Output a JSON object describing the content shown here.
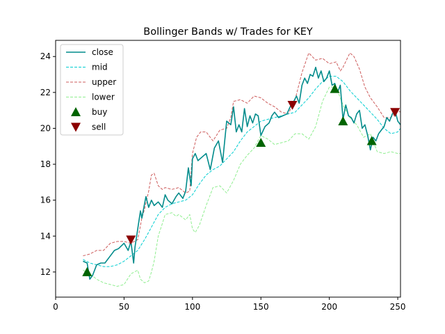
{
  "chart_data": {
    "type": "line",
    "title": "Bollinger Bands w/ Trades for KEY",
    "xlabel": "",
    "ylabel": "",
    "xlim": [
      0,
      252
    ],
    "ylim": [
      10.6,
      24.9
    ],
    "xticks": [
      0,
      50,
      100,
      150,
      200,
      250
    ],
    "yticks": [
      12,
      14,
      16,
      18,
      20,
      22,
      24
    ],
    "grid": false,
    "legend_position": "top-left",
    "colors": {
      "close": "#008b8b",
      "mid": "#00ced1",
      "upper": "#cd5c5c",
      "lower": "#90ee90",
      "buy": "#006400",
      "sell": "#8b0000"
    },
    "series": [
      {
        "name": "close",
        "style": "solid",
        "x": [
          20,
          23,
          25,
          27,
          30,
          33,
          36,
          40,
          43,
          46,
          50,
          53,
          55,
          57,
          58,
          60,
          62,
          63,
          65,
          66,
          68,
          70,
          72,
          75,
          78,
          80,
          82,
          85,
          88,
          90,
          93,
          95,
          97,
          99,
          100,
          102,
          104,
          107,
          110,
          113,
          116,
          119,
          122,
          125,
          128,
          130,
          132,
          134,
          136,
          138,
          140,
          142,
          144,
          146,
          148,
          150,
          153,
          156,
          158,
          160,
          163,
          166,
          169,
          172,
          174,
          176,
          178,
          180,
          182,
          184,
          186,
          188,
          190,
          192,
          194,
          196,
          198,
          200,
          202,
          204,
          206,
          208,
          210,
          212,
          214,
          216,
          218,
          220,
          222,
          224,
          226,
          228,
          230,
          232,
          234,
          236,
          238,
          240,
          242,
          244,
          246,
          248,
          250,
          252
        ],
        "y": [
          12.6,
          12.5,
          11.6,
          11.8,
          12.4,
          12.5,
          12.5,
          12.9,
          13.2,
          13.3,
          13.6,
          13.2,
          13.7,
          12.5,
          13.4,
          14.4,
          15.4,
          15.0,
          15.8,
          16.2,
          15.6,
          16.0,
          15.7,
          15.9,
          15.6,
          16.3,
          16.0,
          15.8,
          16.2,
          16.4,
          16.1,
          16.5,
          17.8,
          16.8,
          18.3,
          18.6,
          18.2,
          18.4,
          18.6,
          17.7,
          18.9,
          19.3,
          18.1,
          20.4,
          20.2,
          21.2,
          19.8,
          20.2,
          19.8,
          21.1,
          20.1,
          20.7,
          20.3,
          20.8,
          20.7,
          19.6,
          20.1,
          20.3,
          20.7,
          20.9,
          20.6,
          20.7,
          20.8,
          21.3,
          21.5,
          21.8,
          21.4,
          22.4,
          22.8,
          22.5,
          23.0,
          22.9,
          23.4,
          22.8,
          23.2,
          22.6,
          22.8,
          23.2,
          22.4,
          22.5,
          22.0,
          22.4,
          20.5,
          21.3,
          20.7,
          20.6,
          20.3,
          20.8,
          21.0,
          20.0,
          20.2,
          19.6,
          18.8,
          19.5,
          19.3,
          19.7,
          19.9,
          20.1,
          20.6,
          20.4,
          20.8,
          21.0,
          20.4,
          20.2
        ]
      },
      {
        "name": "mid",
        "style": "dashed",
        "x": [
          20,
          25,
          30,
          35,
          40,
          45,
          50,
          55,
          60,
          65,
          70,
          75,
          80,
          85,
          90,
          95,
          100,
          105,
          110,
          115,
          120,
          125,
          130,
          135,
          140,
          145,
          150,
          155,
          160,
          165,
          170,
          175,
          180,
          185,
          190,
          195,
          200,
          205,
          210,
          215,
          220,
          225,
          230,
          235,
          240,
          245,
          250,
          252
        ],
        "y": [
          12.7,
          12.5,
          12.4,
          12.3,
          12.3,
          12.4,
          12.6,
          12.9,
          13.2,
          13.8,
          14.5,
          15.2,
          15.6,
          15.8,
          15.9,
          16.0,
          16.3,
          16.9,
          17.4,
          17.7,
          17.9,
          18.3,
          18.7,
          19.3,
          19.8,
          20.1,
          20.4,
          20.5,
          20.6,
          20.7,
          20.8,
          20.9,
          21.3,
          21.7,
          22.2,
          22.6,
          22.9,
          22.9,
          22.6,
          22.1,
          21.7,
          21.3,
          20.9,
          20.5,
          20.0,
          19.7,
          19.8,
          20.0
        ]
      },
      {
        "name": "upper",
        "style": "dashed",
        "x": [
          20,
          25,
          30,
          35,
          40,
          45,
          50,
          55,
          60,
          63,
          65,
          68,
          70,
          72,
          75,
          78,
          80,
          85,
          90,
          95,
          98,
          100,
          103,
          106,
          110,
          115,
          120,
          125,
          128,
          130,
          135,
          140,
          145,
          150,
          155,
          160,
          165,
          170,
          175,
          180,
          185,
          190,
          195,
          200,
          205,
          208,
          210,
          215,
          218,
          222,
          226,
          230,
          235,
          240,
          245,
          250,
          252
        ],
        "y": [
          12.9,
          13.0,
          13.2,
          13.2,
          13.6,
          13.7,
          13.7,
          13.6,
          13.8,
          15.0,
          15.5,
          16.5,
          17.4,
          17.5,
          16.8,
          16.6,
          16.7,
          16.6,
          16.7,
          16.4,
          16.5,
          18.6,
          19.5,
          19.8,
          19.8,
          19.3,
          19.9,
          20.0,
          20.6,
          21.5,
          21.6,
          21.4,
          21.8,
          21.7,
          21.4,
          21.2,
          20.9,
          20.8,
          21.6,
          23.1,
          24.2,
          23.8,
          23.9,
          23.6,
          23.7,
          23.2,
          23.4,
          24.2,
          24.0,
          23.3,
          22.3,
          21.7,
          21.2,
          20.6,
          20.6,
          21.0,
          20.9
        ]
      },
      {
        "name": "lower",
        "style": "dashed",
        "x": [
          20,
          25,
          30,
          35,
          40,
          45,
          50,
          55,
          60,
          62,
          65,
          68,
          70,
          72,
          75,
          78,
          80,
          85,
          88,
          90,
          95,
          98,
          100,
          102,
          105,
          110,
          115,
          120,
          125,
          130,
          135,
          140,
          145,
          150,
          155,
          160,
          165,
          170,
          175,
          180,
          185,
          190,
          195,
          200,
          205,
          210,
          215,
          220,
          225,
          230,
          235,
          240,
          245,
          250,
          252
        ],
        "y": [
          12.1,
          11.9,
          11.6,
          11.4,
          11.3,
          11.2,
          11.3,
          11.9,
          12.1,
          11.6,
          11.4,
          11.5,
          12.0,
          12.6,
          14.0,
          14.7,
          15.2,
          15.3,
          15.1,
          15.2,
          14.9,
          15.2,
          14.4,
          14.2,
          14.6,
          15.7,
          16.7,
          16.8,
          16.4,
          17.1,
          18.0,
          18.5,
          18.9,
          19.6,
          19.4,
          19.1,
          19.2,
          19.3,
          19.7,
          19.7,
          19.4,
          20.1,
          21.5,
          22.3,
          22.3,
          21.3,
          20.6,
          20.2,
          19.5,
          19.7,
          18.7,
          18.6,
          18.7,
          18.6,
          18.6
        ]
      }
    ],
    "markers": [
      {
        "name": "buy",
        "shape": "triangle-up",
        "points": [
          [
            23,
            12.0
          ],
          [
            150,
            19.2
          ],
          [
            204,
            22.2
          ],
          [
            210,
            20.4
          ],
          [
            231,
            19.3
          ]
        ]
      },
      {
        "name": "sell",
        "shape": "triangle-down",
        "points": [
          [
            55,
            13.8
          ],
          [
            173,
            21.3
          ],
          [
            248,
            20.9
          ]
        ]
      }
    ],
    "legend": [
      "close",
      "mid",
      "upper",
      "lower",
      "buy",
      "sell"
    ]
  }
}
